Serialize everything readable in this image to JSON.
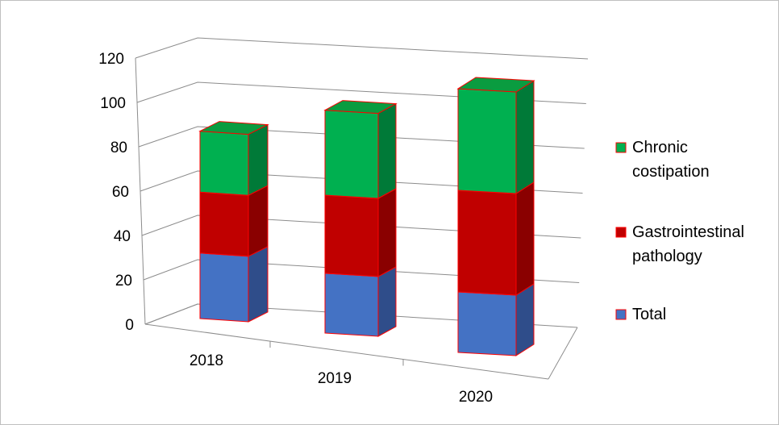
{
  "chart_data": {
    "type": "bar",
    "stacked": true,
    "view": "3d",
    "categories": [
      "2018",
      "2019",
      "2020"
    ],
    "series": [
      {
        "name": "Total",
        "values": [
          29,
          26,
          25
        ],
        "color": "#4472c4",
        "side_color": "#2f4d8a",
        "top_color": "#5b86d0"
      },
      {
        "name": "Gastrointestinal pathology",
        "values": [
          27,
          34,
          42
        ],
        "color": "#c00000",
        "side_color": "#8a0000",
        "top_color": "#d01818"
      },
      {
        "name": "Chronic costipation",
        "values": [
          27,
          37,
          42
        ],
        "color": "#00b050",
        "side_color": "#007a38",
        "top_color": "#0a9c40"
      }
    ],
    "y_ticks": [
      "0",
      "20",
      "40",
      "60",
      "80",
      "100",
      "120"
    ],
    "ylim": [
      0,
      120
    ],
    "title": "",
    "xlabel": "",
    "ylabel": "",
    "grid": true,
    "legend_position": "right",
    "legend_lines": [
      [
        "Chronic",
        "costipation"
      ],
      [
        "Gastrointestinal",
        "pathology"
      ],
      [
        "Total"
      ]
    ],
    "edge_color": "#ff0000"
  }
}
